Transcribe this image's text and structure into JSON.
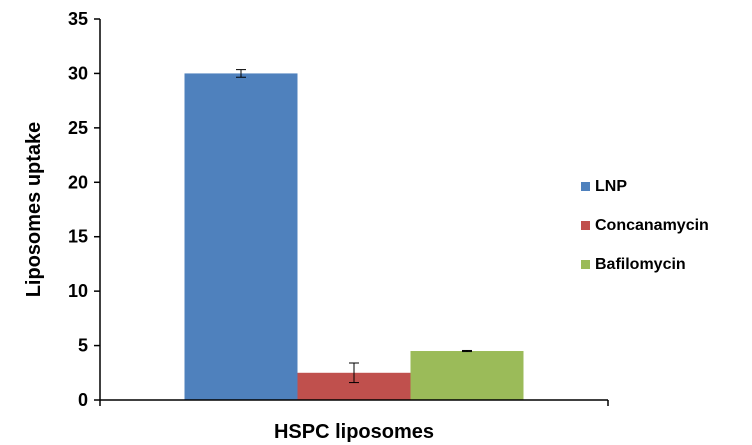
{
  "chart_data": {
    "type": "bar",
    "title": "",
    "xlabel": "HSPC liposomes",
    "ylabel": "Liposomes uptake",
    "ylim": [
      0,
      35
    ],
    "yticks": [
      0,
      5,
      10,
      15,
      20,
      25,
      30,
      35
    ],
    "categories": [
      "HSPC liposomes"
    ],
    "series": [
      {
        "name": "LNP",
        "values": [
          30.0
        ],
        "error": [
          0.35
        ],
        "color": "#4f81bd"
      },
      {
        "name": "Concanamycin",
        "values": [
          2.5
        ],
        "error": [
          0.9
        ],
        "color": "#c0504d"
      },
      {
        "name": "Bafilomycin",
        "values": [
          4.5
        ],
        "error": [
          0.05
        ],
        "color": "#9bbb59"
      }
    ],
    "grid": false,
    "legend_position": "right"
  }
}
